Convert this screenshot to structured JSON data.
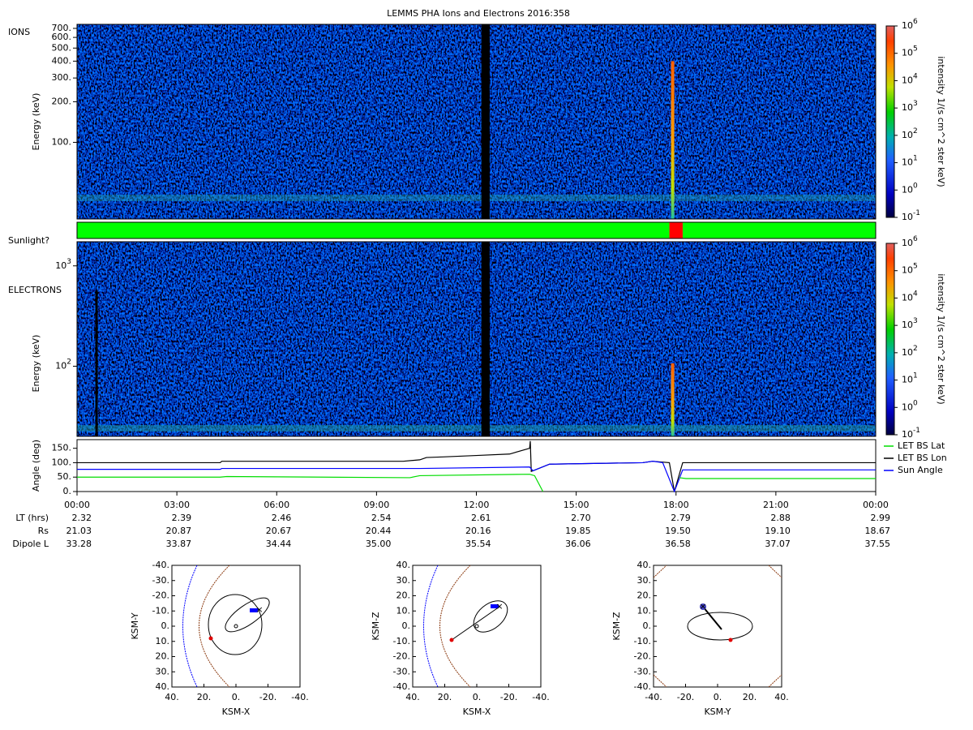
{
  "title": "LEMMS PHA Ions and Electrons  2016:358",
  "ions": {
    "label": "IONS",
    "ylabel": "Energy (keV)",
    "log": true,
    "ylim": [
      27,
      750
    ],
    "yticks": [
      {
        "value": 100,
        "label": "100."
      },
      {
        "value": 200,
        "label": "200."
      },
      {
        "value": 300,
        "label": "300."
      },
      {
        "value": 400,
        "label": "400."
      },
      {
        "value": 500,
        "label": "500."
      },
      {
        "value": 600,
        "label": "600."
      },
      {
        "value": 700,
        "label": "700."
      }
    ]
  },
  "sunlight": {
    "label": "Sunlight?",
    "segments": [
      {
        "start": 0,
        "end": 17.8,
        "color": "#00ff00"
      },
      {
        "start": 17.8,
        "end": 18.2,
        "color": "#ff0000"
      },
      {
        "start": 18.2,
        "end": 24,
        "color": "#00ff00"
      }
    ]
  },
  "electrons": {
    "label": "ELECTRONS",
    "ylabel": "Energy (keV)",
    "log": true,
    "ylim": [
      20,
      1740
    ],
    "yticks": [
      {
        "value": 100,
        "label": "10^2"
      },
      {
        "value": 1000,
        "label": "10^3"
      }
    ]
  },
  "colorbar": {
    "label": "intensity 1/(s cm^2 ster keV)",
    "log": true,
    "lim": [
      0.1,
      1000000
    ],
    "ticks": [
      {
        "value": 0.1,
        "label": "10^-1"
      },
      {
        "value": 1,
        "label": "10^0"
      },
      {
        "value": 10,
        "label": "10^1"
      },
      {
        "value": 100,
        "label": "10^2"
      },
      {
        "value": 1000,
        "label": "10^3"
      },
      {
        "value": 10000,
        "label": "10^4"
      },
      {
        "value": 100000,
        "label": "10^5"
      },
      {
        "value": 1000000,
        "label": "10^6"
      }
    ]
  },
  "angle": {
    "ylabel": "Angle (deg)",
    "ylim": [
      0,
      180
    ],
    "yticks": [
      {
        "value": 0,
        "label": "0."
      },
      {
        "value": 50,
        "label": "50."
      },
      {
        "value": 100,
        "label": "100."
      },
      {
        "value": 150,
        "label": "150."
      }
    ],
    "xlim": [
      0,
      24
    ],
    "xticks": [
      {
        "value": 0,
        "label": "00:00"
      },
      {
        "value": 3,
        "label": "03:00"
      },
      {
        "value": 6,
        "label": "06:00"
      },
      {
        "value": 9,
        "label": "09:00"
      },
      {
        "value": 12,
        "label": "12:00"
      },
      {
        "value": 15,
        "label": "15:00"
      },
      {
        "value": 18,
        "label": "18:00"
      },
      {
        "value": 21,
        "label": "21:00"
      },
      {
        "value": 24,
        "label": "00:00"
      }
    ],
    "series": [
      {
        "name": "LET BS Lon",
        "color": "#000000",
        "x": [
          0,
          4.3,
          4.35,
          9.8,
          10.3,
          10.5,
          11,
          12,
          13,
          13.6,
          13.62,
          13.65,
          13.7,
          14.2,
          17,
          17.3,
          17.8,
          17.95,
          18.2,
          24
        ],
        "values": [
          100,
          100,
          105,
          105,
          110,
          118,
          120,
          125,
          130,
          150,
          175,
          70,
          72,
          95,
          100,
          105,
          100,
          0,
          100,
          100
        ]
      },
      {
        "name": "Sun Angle",
        "color": "#0000ff",
        "x": [
          0,
          4.3,
          4.35,
          9.8,
          10.3,
          13.6,
          13.7,
          14.2,
          17,
          17.3,
          17.6,
          17.95,
          18.2,
          24
        ],
        "values": [
          77,
          77,
          80,
          80,
          80,
          85,
          72,
          95,
          100,
          105,
          100,
          0,
          75,
          75
        ]
      },
      {
        "name": "LET BS Lat",
        "color": "#00dd00",
        "x": [
          0,
          4.3,
          4.5,
          10,
          10.3,
          13.6,
          13.75,
          14.0,
          16,
          18.1,
          18.3,
          24
        ],
        "values": [
          50,
          50,
          52,
          48,
          55,
          60,
          55,
          0,
          null,
          48,
          45,
          45
        ]
      }
    ],
    "legend": [
      "LET BS Lat",
      "LET BS Lon",
      "Sun Angle"
    ]
  },
  "ephemeris": {
    "rows": [
      {
        "label": "LT (hrs)",
        "values": [
          "2.32",
          "2.39",
          "2.46",
          "2.54",
          "2.61",
          "2.70",
          "2.79",
          "2.88",
          "2.99"
        ]
      },
      {
        "label": "Rs",
        "values": [
          "21.03",
          "20.87",
          "20.67",
          "20.44",
          "20.16",
          "19.85",
          "19.50",
          "19.10",
          "18.67"
        ]
      },
      {
        "label": "Dipole L",
        "values": [
          "33.28",
          "33.87",
          "34.44",
          "35.00",
          "35.54",
          "36.06",
          "36.58",
          "37.07",
          "37.55"
        ]
      }
    ]
  },
  "orbits": [
    {
      "xlabel": "KSM-X",
      "ylabel": "KSM-Y",
      "xticks": [
        {
          "value": 40,
          "label": "40."
        },
        {
          "value": 20,
          "label": "20."
        },
        {
          "value": 0,
          "label": "0."
        },
        {
          "value": -20,
          "label": "-20."
        },
        {
          "value": -40,
          "label": "-40."
        }
      ],
      "yticks": [
        {
          "value": -40,
          "label": "-40."
        },
        {
          "value": -30,
          "label": "-30."
        },
        {
          "value": -20,
          "label": "-20."
        },
        {
          "value": -10,
          "label": "-10."
        },
        {
          "value": 0,
          "label": "0."
        },
        {
          "value": 10,
          "label": "10."
        },
        {
          "value": 20,
          "label": "20."
        },
        {
          "value": 30,
          "label": "30."
        },
        {
          "value": 40,
          "label": "40."
        }
      ]
    },
    {
      "xlabel": "KSM-X",
      "ylabel": "KSM-Z",
      "xticks": [
        {
          "value": 40,
          "label": "40."
        },
        {
          "value": 20,
          "label": "20."
        },
        {
          "value": 0,
          "label": "0."
        },
        {
          "value": -20,
          "label": "-20."
        },
        {
          "value": -40,
          "label": "-40."
        }
      ],
      "yticks": [
        {
          "value": 40,
          "label": "40."
        },
        {
          "value": 30,
          "label": "30."
        },
        {
          "value": 20,
          "label": "20."
        },
        {
          "value": 10,
          "label": "10."
        },
        {
          "value": 0,
          "label": "0."
        },
        {
          "value": -10,
          "label": "-10."
        },
        {
          "value": -20,
          "label": "-20."
        },
        {
          "value": -30,
          "label": "-30."
        },
        {
          "value": -40,
          "label": "-40."
        }
      ]
    },
    {
      "xlabel": "KSM-Y",
      "ylabel": "KSM-Z",
      "xticks": [
        {
          "value": -40,
          "label": "-40."
        },
        {
          "value": -20,
          "label": "-20."
        },
        {
          "value": 0,
          "label": "0."
        },
        {
          "value": 20,
          "label": "20."
        },
        {
          "value": 40,
          "label": "40."
        }
      ],
      "yticks": [
        {
          "value": 40,
          "label": "40."
        },
        {
          "value": 30,
          "label": "30."
        },
        {
          "value": 20,
          "label": "20."
        },
        {
          "value": 10,
          "label": "10."
        },
        {
          "value": 0,
          "label": "0."
        },
        {
          "value": -10,
          "label": "-10."
        },
        {
          "value": -20,
          "label": "-20."
        },
        {
          "value": -30,
          "label": "-30."
        },
        {
          "value": -40,
          "label": "-40."
        }
      ]
    }
  ]
}
